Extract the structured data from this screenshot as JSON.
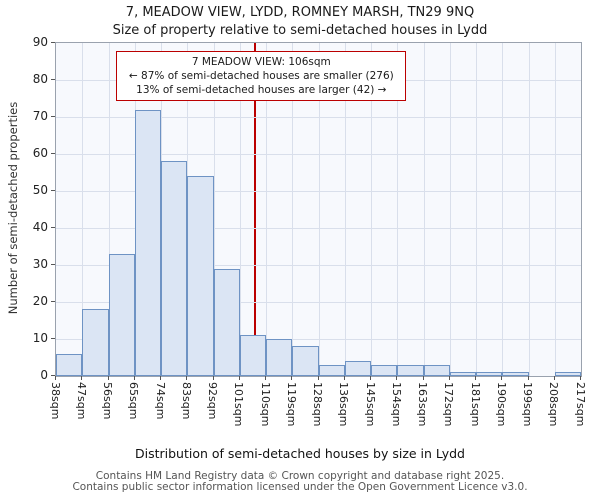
{
  "title": "7, MEADOW VIEW, LYDD, ROMNEY MARSH, TN29 9NQ",
  "subtitle": "Size of property relative to semi-detached houses in Lydd",
  "chart_data": {
    "type": "bar",
    "title": "7, MEADOW VIEW, LYDD, ROMNEY MARSH, TN29 9NQ",
    "subtitle": "Size of property relative to semi-detached houses in Lydd",
    "xlabel": "Distribution of semi-detached houses by size in Lydd",
    "ylabel": "Number of semi-detached properties",
    "ylim": [
      0,
      90
    ],
    "ytick_step": 10,
    "grid": true,
    "bin_edges": [
      38,
      47,
      56,
      65,
      74,
      83,
      92,
      101,
      110,
      119,
      128,
      136,
      145,
      154,
      163,
      172,
      181,
      190,
      199,
      208,
      217
    ],
    "tick_labels": [
      "38sqm",
      "47sqm",
      "56sqm",
      "65sqm",
      "74sqm",
      "83sqm",
      "92sqm",
      "101sqm",
      "110sqm",
      "119sqm",
      "128sqm",
      "136sqm",
      "145sqm",
      "154sqm",
      "163sqm",
      "172sqm",
      "181sqm",
      "190sqm",
      "199sqm",
      "208sqm",
      "217sqm"
    ],
    "values": [
      6,
      18,
      33,
      72,
      58,
      54,
      29,
      11,
      10,
      8,
      3,
      4,
      3,
      3,
      3,
      1,
      1,
      1,
      0,
      1
    ],
    "bar_fill": "#dbe5f4",
    "bar_stroke": "#6e93c4",
    "grid_color": "#d9dfeb",
    "marker": {
      "value": 106,
      "color": "#bb0000",
      "line1": "7 MEADOW VIEW: 106sqm",
      "line2": "← 87% of semi-detached houses are smaller (276)",
      "line3": "13% of semi-detached houses are larger (42) →"
    }
  },
  "footer": {
    "line1": "Contains HM Land Registry data © Crown copyright and database right 2025.",
    "line2": "Contains public sector information licensed under the Open Government Licence v3.0."
  }
}
